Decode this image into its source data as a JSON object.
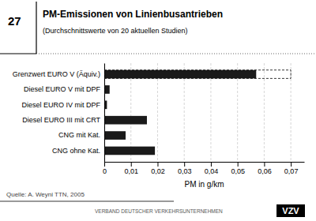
{
  "chart_data": {
    "type": "bar",
    "orientation": "horizontal",
    "title": "PM-Emissionen von Linienbusantrieben",
    "subtitle": "(Durchschnittswerte von 20 aktuellen Studien)",
    "categories": [
      "Grenzwert EURO V (Äquiv.)",
      "Diesel EURO V mit DPF",
      "Diesel EURO IV mit DPF",
      "Diesel EURO III mit CRT",
      "CNG mit Kat.",
      "CNG ohne Kat."
    ],
    "values": [
      0.057,
      0.002,
      0.001,
      0.016,
      0.008,
      0.019
    ],
    "color": "#1a1a1a",
    "dashed_box_end": 0.07,
    "xlabel": "PM in g/km",
    "xlim": [
      0,
      0.075
    ],
    "xticks": [
      0,
      {
        "value": 0.01,
        "label": "0,01"
      },
      {
        "value": 0.02,
        "label": "0,02"
      },
      {
        "value": 0.03,
        "label": "0,03"
      },
      {
        "value": 0.04,
        "label": "0,04"
      },
      {
        "value": 0.05,
        "label": "0,05"
      },
      {
        "value": 0.06,
        "label": "0,06"
      },
      {
        "value": 0.07,
        "label": "0,07"
      }
    ],
    "grid": true,
    "annotations": [
      "27",
      "Quelle: A. Weyni TTN, 2005",
      "VERBAND DEUTSCHER VERKEHRSUNTERNEHMEN",
      "VZV"
    ]
  }
}
